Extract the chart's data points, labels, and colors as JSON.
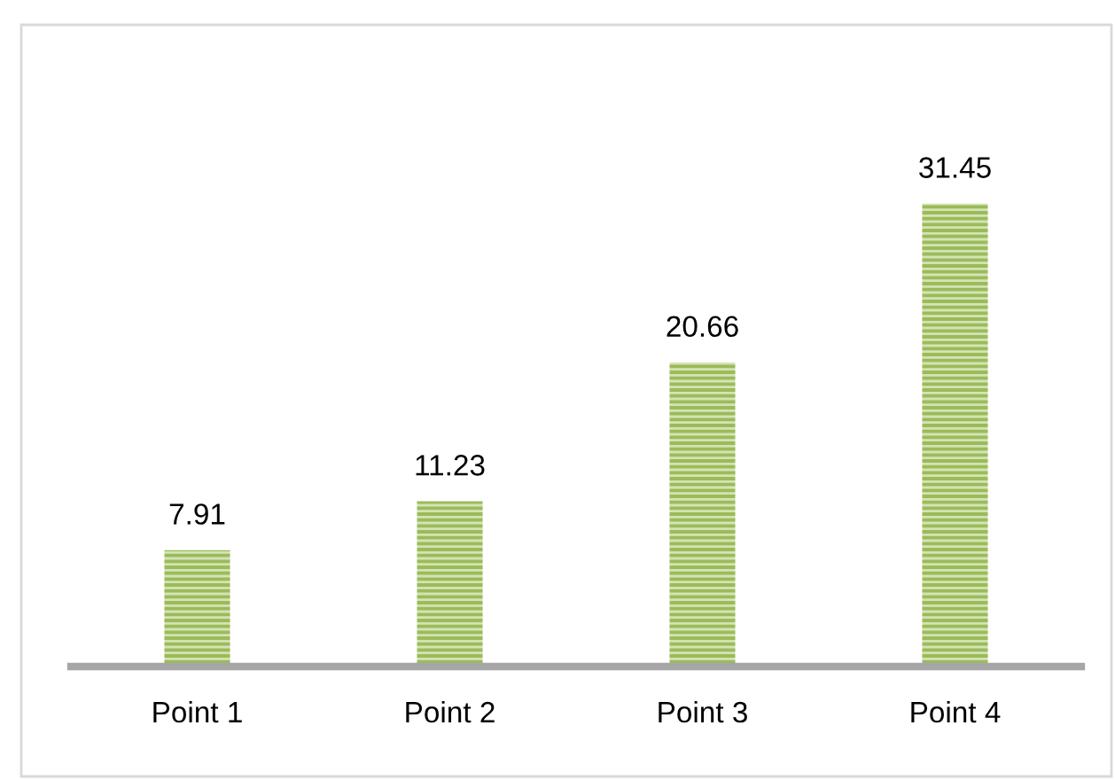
{
  "chart_data": {
    "type": "bar",
    "categories": [
      "Point 1",
      "Point 2",
      "Point 3",
      "Point 4"
    ],
    "values": [
      7.91,
      11.23,
      20.66,
      31.45
    ],
    "color": "#9bbb59",
    "data_labels": true,
    "grid": false,
    "legend": false
  }
}
